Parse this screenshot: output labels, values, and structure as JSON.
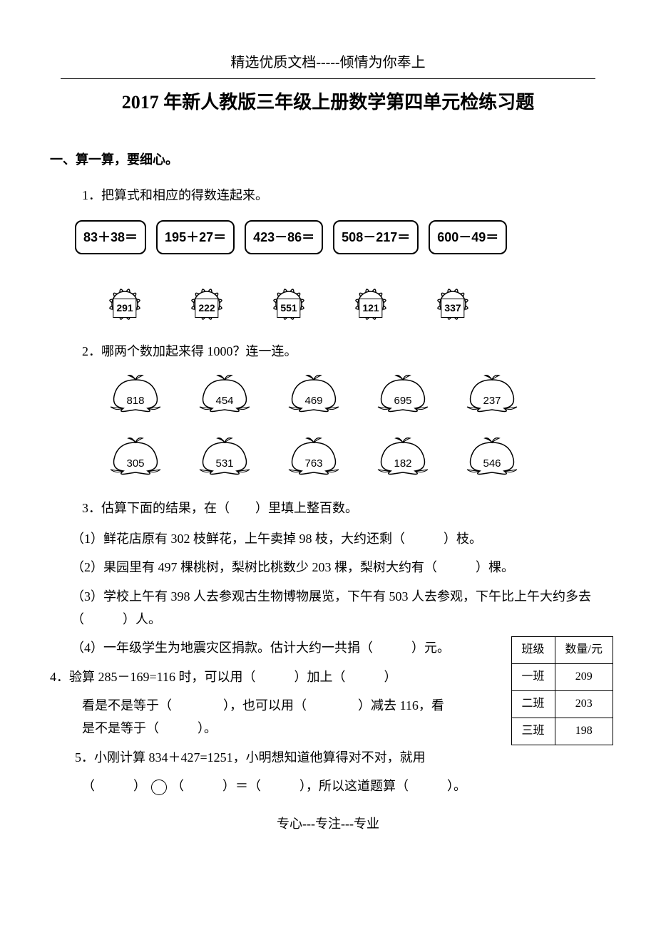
{
  "header": "精选优质文档-----倾情为你奉上",
  "title": "2017 年新人教版三年级上册数学第四单元检练习题",
  "section1": {
    "heading": "一、算一算，要细心。",
    "q1_label": "1．把算式和相应的得数连起来。",
    "equations": [
      "83＋38＝",
      "195＋27＝",
      "423－86＝",
      "508－217＝",
      "600－49＝"
    ],
    "flowers": [
      "291",
      "222",
      "551",
      "121",
      "337"
    ],
    "q2_label": "2．哪两个数加起来得 1000？连一连。",
    "persimmons_top": [
      "818",
      "454",
      "469",
      "695",
      "237"
    ],
    "persimmons_bottom": [
      "305",
      "531",
      "763",
      "182",
      "546"
    ],
    "q3_label": "3．估算下面的结果，在（　　）里填上整百数。",
    "q3_1": "（1）鲜花店原有 302 枝鲜花，上午卖掉 98 枝，大约还剩（　　　）枝。",
    "q3_2": "（2）果园里有 497 棵桃树，梨树比桃数少 203 棵，梨树大约有（　　　）棵。",
    "q3_3": "（3）学校上午有 398 人去参观古生物博物展览，下午有 503 人去参观，下午比上午大约多去（　　　）人。",
    "q3_4": "（4）一年级学生为地震灾区捐款。估计大约一共捐（　　　）元。",
    "q4_label": "4．验算 285－169=116 时，可以用（　　　）加上（　　　）",
    "q4_line2": "看是不是等于（　　　　），也可以用（　　　　）减去 116，看是不是等于（　　　）。",
    "q5_label": "5．小刚计算 834＋427=1251，小明想知道他算得对不对，就用",
    "q5_line2_a": "（　　　）",
    "q5_line2_b": "（　　　）＝（　　　），所以这道题算（　　　）。"
  },
  "table": {
    "headers": [
      "班级",
      "数量/元"
    ],
    "rows": [
      [
        "一班",
        "209"
      ],
      [
        "二班",
        "203"
      ],
      [
        "三班",
        "198"
      ]
    ]
  },
  "footer": "专心---专注---专业",
  "svg": {
    "flower_petals": 12,
    "flower_r1": 14,
    "flower_r2": 30,
    "flower_center": 18
  }
}
